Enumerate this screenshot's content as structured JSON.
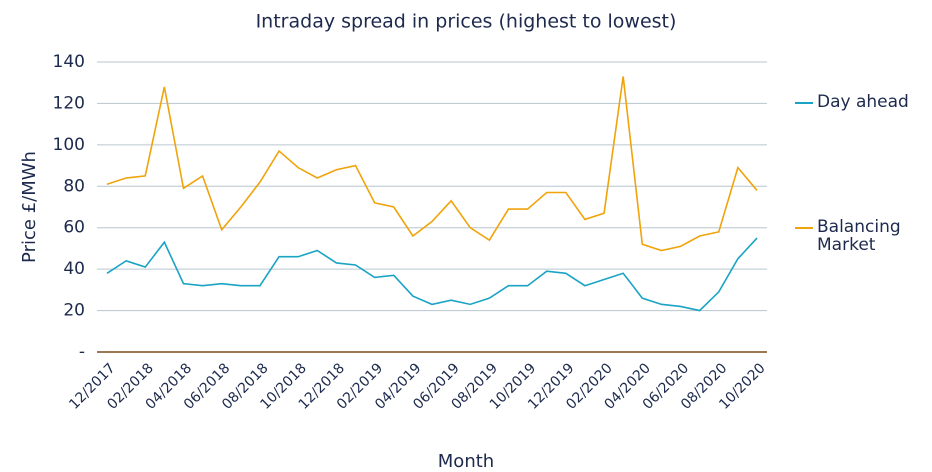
{
  "chart_data": {
    "type": "line",
    "title": "Intraday spread in prices (highest to lowest)",
    "x_label": "Month",
    "y_label": "Price £/MWh",
    "categories": [
      "12/2017",
      null,
      "02/2018",
      null,
      "04/2018",
      null,
      "06/2018",
      null,
      "08/2018",
      null,
      "10/2018",
      null,
      "12/2018",
      null,
      "02/2019",
      null,
      "04/2019",
      null,
      "06/2019",
      null,
      "08/2019",
      null,
      "10/2019",
      null,
      "12/2019",
      null,
      "02/2020",
      null,
      "04/2020",
      null,
      "06/2020",
      null,
      "08/2020",
      null,
      "10/2020"
    ],
    "series": [
      {
        "name": "Day ahead",
        "color": "#1aa3c4",
        "values": [
          38,
          44,
          41,
          53,
          33,
          32,
          33,
          32,
          32,
          46,
          46,
          49,
          43,
          42,
          36,
          37,
          27,
          23,
          25,
          23,
          26,
          32,
          32,
          39,
          38,
          32,
          35,
          38,
          26,
          23,
          22,
          20,
          29,
          45,
          55
        ]
      },
      {
        "name": "Balancing Market",
        "color": "#f0a30a",
        "values": [
          81,
          84,
          85,
          128,
          79,
          85,
          59,
          70,
          82,
          97,
          89,
          84,
          88,
          90,
          72,
          70,
          56,
          63,
          73,
          60,
          54,
          69,
          69,
          77,
          77,
          64,
          67,
          133,
          52,
          49,
          51,
          56,
          58,
          89,
          78
        ]
      }
    ],
    "ylim": [
      0,
      140
    ],
    "yticks": [
      {
        "value": 0,
        "label": "-"
      },
      20,
      40,
      60,
      80,
      100,
      120,
      140
    ],
    "grid": true,
    "legend": "right"
  }
}
